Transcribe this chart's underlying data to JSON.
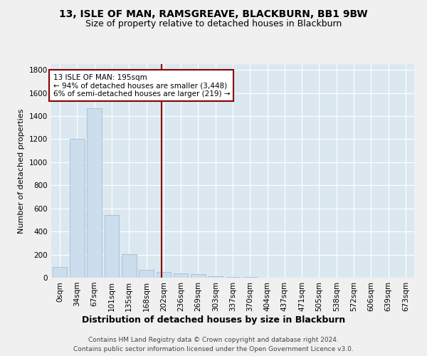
{
  "title": "13, ISLE OF MAN, RAMSGREAVE, BLACKBURN, BB1 9BW",
  "subtitle": "Size of property relative to detached houses in Blackburn",
  "xlabel": "Distribution of detached houses by size in Blackburn",
  "ylabel": "Number of detached properties",
  "bar_color": "#ccdded",
  "bar_edgecolor": "#a0bfd4",
  "background_color": "#dce8f0",
  "fig_background": "#f0f0f0",
  "grid_color": "#ffffff",
  "categories": [
    "0sqm",
    "34sqm",
    "67sqm",
    "101sqm",
    "135sqm",
    "168sqm",
    "202sqm",
    "236sqm",
    "269sqm",
    "303sqm",
    "337sqm",
    "370sqm",
    "404sqm",
    "437sqm",
    "471sqm",
    "505sqm",
    "538sqm",
    "572sqm",
    "606sqm",
    "639sqm",
    "673sqm"
  ],
  "values": [
    90,
    1200,
    1470,
    540,
    205,
    68,
    48,
    38,
    30,
    12,
    8,
    5,
    3,
    2,
    0,
    0,
    0,
    0,
    0,
    0,
    0
  ],
  "vline_x": 5.88,
  "vline_color": "#8b0000",
  "annotation_text": "13 ISLE OF MAN: 195sqm\n← 94% of detached houses are smaller (3,448)\n6% of semi-detached houses are larger (219) →",
  "annotation_box_color": "#ffffff",
  "annotation_box_edgecolor": "#8b0000",
  "ylim": [
    0,
    1850
  ],
  "yticks": [
    0,
    200,
    400,
    600,
    800,
    1000,
    1200,
    1400,
    1600,
    1800
  ],
  "title_fontsize": 10,
  "subtitle_fontsize": 9,
  "ylabel_fontsize": 8,
  "xlabel_fontsize": 9,
  "tick_fontsize": 7.5,
  "footer_line1": "Contains HM Land Registry data © Crown copyright and database right 2024.",
  "footer_line2": "Contains public sector information licensed under the Open Government Licence v3.0."
}
